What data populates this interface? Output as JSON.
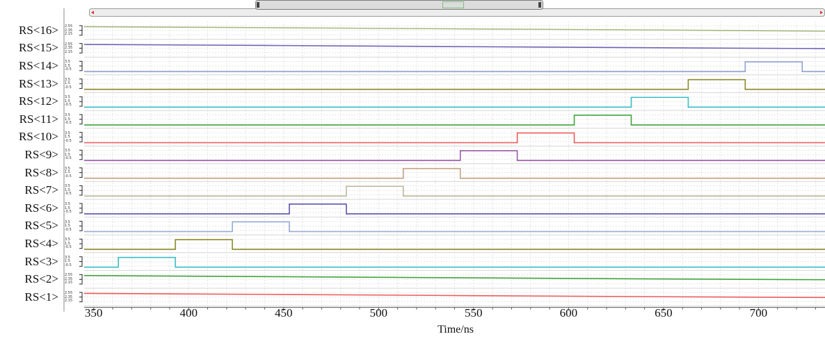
{
  "chart_data": {
    "type": "line",
    "title": "",
    "xlabel": "Time/ns",
    "ylabel": "",
    "xlim": [
      345,
      735
    ],
    "x_ticks": [
      350,
      400,
      450,
      500,
      550,
      600,
      650,
      700
    ],
    "grid": true,
    "legend": "none",
    "row_ticks_pulse": [
      "3.5",
      "1.5",
      "-0.5"
    ],
    "row_ticks_analog": [
      "2.55",
      "2.35",
      "2.15"
    ],
    "series": [
      {
        "name": "RS<16>",
        "kind": "analog",
        "color": "#a7b87f",
        "ylim": [
          2.15,
          2.55
        ],
        "points": [
          [
            345,
            2.45
          ],
          [
            450,
            2.42
          ],
          [
            550,
            2.39
          ],
          [
            650,
            2.36
          ],
          [
            735,
            2.33
          ]
        ]
      },
      {
        "name": "RS<15>",
        "kind": "analog",
        "color": "#7163b4",
        "ylim": [
          2.15,
          2.55
        ],
        "points": [
          [
            345,
            2.45
          ],
          [
            450,
            2.42
          ],
          [
            550,
            2.39
          ],
          [
            650,
            2.36
          ],
          [
            735,
            2.34
          ]
        ]
      },
      {
        "name": "RS<14>",
        "kind": "pulse",
        "color": "#8ea1d0",
        "ylim": [
          -0.5,
          3.5
        ],
        "low": 0.0,
        "high": 2.6,
        "start": 693,
        "end": 723
      },
      {
        "name": "RS<13>",
        "kind": "pulse",
        "color": "#8a8a2a",
        "ylim": [
          -0.5,
          3.5
        ],
        "low": 0.0,
        "high": 2.6,
        "start": 663,
        "end": 693
      },
      {
        "name": "RS<12>",
        "kind": "pulse",
        "color": "#3bbfc4",
        "ylim": [
          -0.5,
          3.5
        ],
        "low": 0.0,
        "high": 2.6,
        "start": 633,
        "end": 663
      },
      {
        "name": "RS<11>",
        "kind": "pulse",
        "color": "#3fa63a",
        "ylim": [
          -0.5,
          3.5
        ],
        "low": 0.0,
        "high": 2.6,
        "start": 603,
        "end": 633
      },
      {
        "name": "RS<10>",
        "kind": "pulse",
        "color": "#ee5a5a",
        "ylim": [
          -0.5,
          3.5
        ],
        "low": 0.0,
        "high": 2.6,
        "start": 573,
        "end": 603
      },
      {
        "name": "RS<9>",
        "kind": "pulse",
        "color": "#9b58a8",
        "ylim": [
          -0.5,
          3.5
        ],
        "low": 0.0,
        "high": 2.6,
        "start": 543,
        "end": 573
      },
      {
        "name": "RS<8>",
        "kind": "pulse",
        "color": "#c2a280",
        "ylim": [
          -0.5,
          3.5
        ],
        "low": 0.0,
        "high": 2.6,
        "start": 513,
        "end": 543
      },
      {
        "name": "RS<7>",
        "kind": "pulse",
        "color": "#b9b99a",
        "ylim": [
          -0.5,
          3.5
        ],
        "low": 0.0,
        "high": 2.6,
        "start": 483,
        "end": 513
      },
      {
        "name": "RS<6>",
        "kind": "pulse",
        "color": "#5c52b0",
        "ylim": [
          -0.5,
          3.5
        ],
        "low": 0.0,
        "high": 2.6,
        "start": 453,
        "end": 483
      },
      {
        "name": "RS<5>",
        "kind": "pulse",
        "color": "#93a9d2",
        "ylim": [
          -0.5,
          3.5
        ],
        "low": 0.0,
        "high": 2.6,
        "start": 423,
        "end": 453
      },
      {
        "name": "RS<4>",
        "kind": "pulse",
        "color": "#8a8a2a",
        "ylim": [
          -0.5,
          3.5
        ],
        "low": 0.0,
        "high": 2.6,
        "start": 393,
        "end": 423
      },
      {
        "name": "RS<3>",
        "kind": "pulse",
        "color": "#3bbfc4",
        "ylim": [
          -0.5,
          3.5
        ],
        "low": 0.0,
        "high": 2.6,
        "start": 363,
        "end": 393
      },
      {
        "name": "RS<2>",
        "kind": "analog",
        "color": "#3fa63a",
        "ylim": [
          2.15,
          2.55
        ],
        "points": [
          [
            345,
            2.45
          ],
          [
            450,
            2.42
          ],
          [
            550,
            2.39
          ],
          [
            650,
            2.36
          ],
          [
            735,
            2.34
          ]
        ]
      },
      {
        "name": "RS<1>",
        "kind": "analog",
        "color": "#ee5a5a",
        "ylim": [
          2.15,
          2.55
        ],
        "points": [
          [
            345,
            2.45
          ],
          [
            450,
            2.42
          ],
          [
            550,
            2.39
          ],
          [
            650,
            2.36
          ],
          [
            735,
            2.34
          ]
        ]
      }
    ]
  },
  "colors": {
    "grid": "#e4e4e4",
    "axis": "#555555",
    "scrollbar_fill": "#ececec",
    "scrollbar_border": "#9a9a9a"
  }
}
